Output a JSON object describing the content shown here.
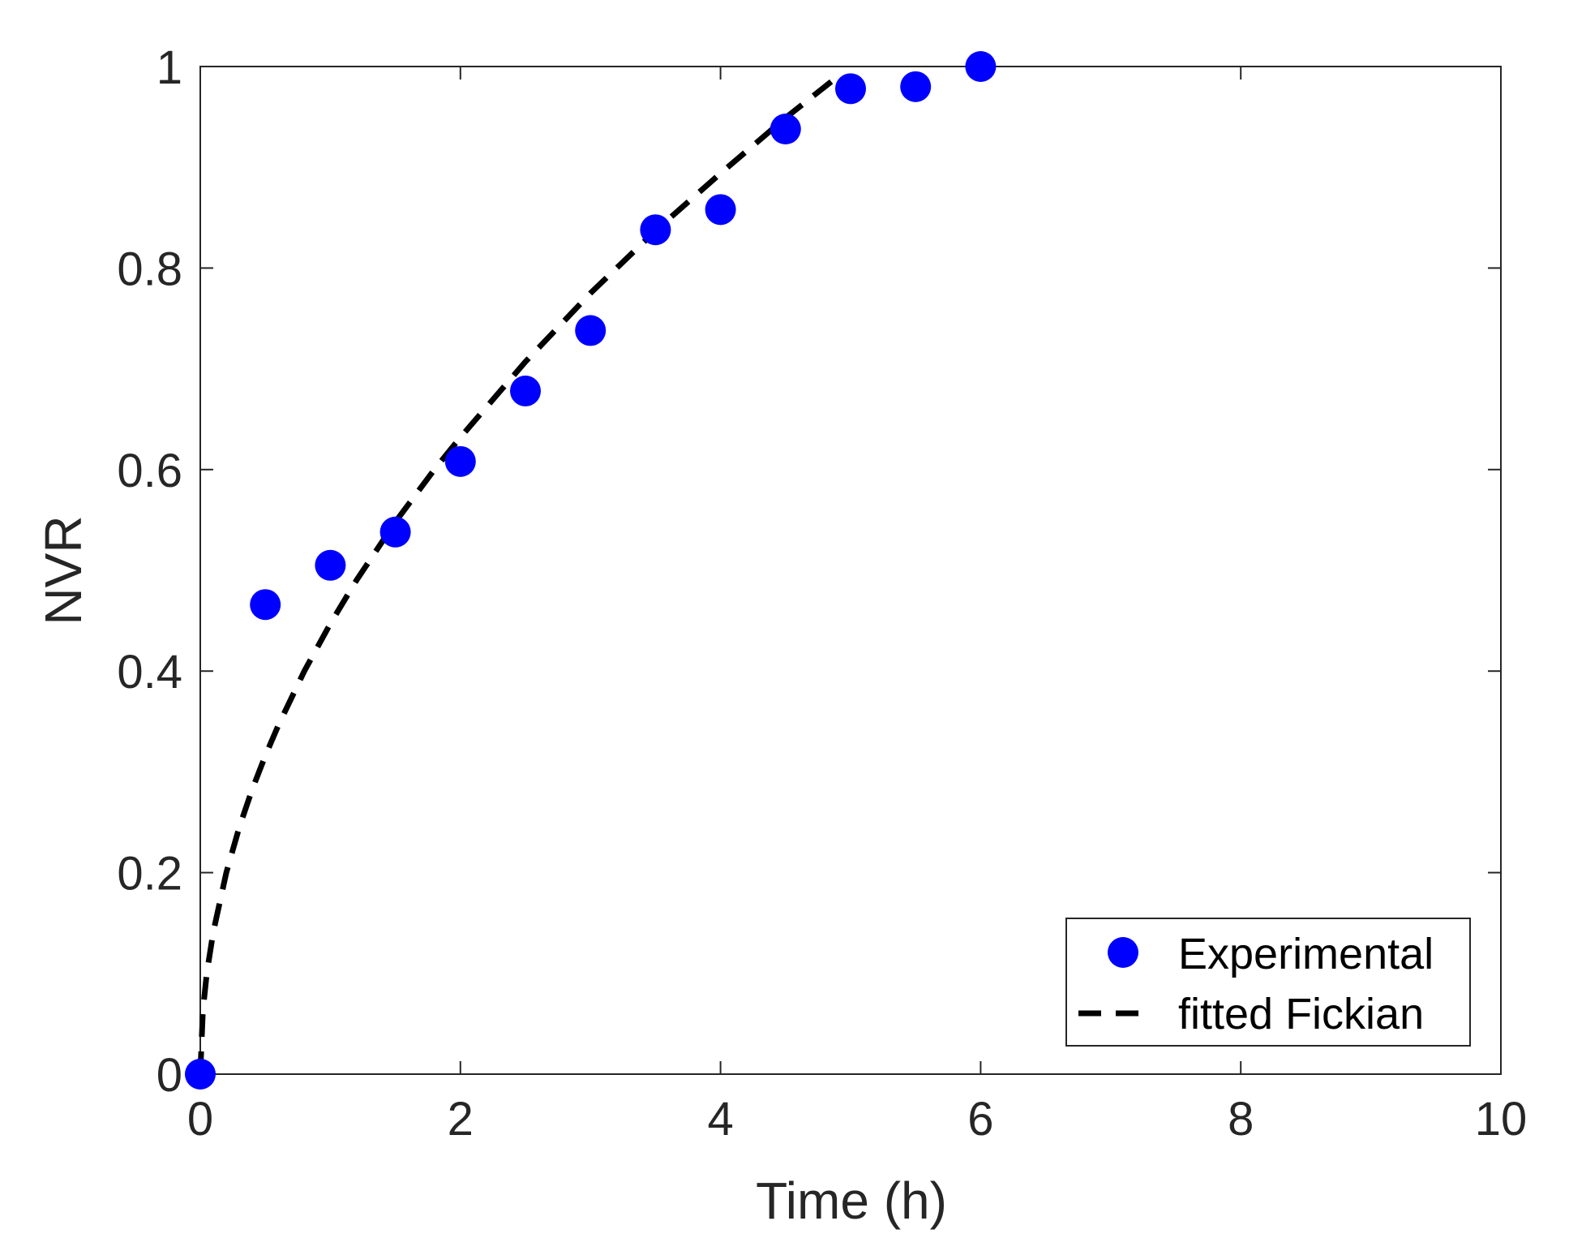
{
  "chart_data": {
    "type": "scatter",
    "title": "",
    "xlabel": "Time (h)",
    "ylabel": "NVR",
    "xlim": [
      0,
      10
    ],
    "ylim": [
      0,
      1
    ],
    "xticks": [
      0,
      2,
      4,
      6,
      8,
      10
    ],
    "yticks": [
      0,
      0.2,
      0.4,
      0.6,
      0.8,
      1
    ],
    "xtick_labels": [
      "0",
      "2",
      "4",
      "6",
      "8",
      "10"
    ],
    "ytick_labels": [
      "0",
      "0.2",
      "0.4",
      "0.6",
      "0.8",
      "1"
    ],
    "grid": false,
    "legend_position": "bottom-right",
    "series": [
      {
        "name": "Experimental",
        "kind": "markers",
        "color": "#0000ff",
        "x": [
          0,
          0.5,
          1,
          1.5,
          2,
          2.5,
          3,
          3.5,
          4,
          4.5,
          5,
          5.5,
          6
        ],
        "y": [
          0,
          0.466,
          0.505,
          0.538,
          0.608,
          0.678,
          0.738,
          0.838,
          0.858,
          0.938,
          0.978,
          0.98,
          1.0
        ]
      },
      {
        "name": "fitted Fickian",
        "kind": "dashed-line",
        "color": "#000000",
        "x": [
          0,
          0.02,
          0.05,
          0.1,
          0.2,
          0.3,
          0.4,
          0.5,
          0.6,
          0.8,
          1.0,
          1.2,
          1.5,
          1.8,
          2.0,
          2.5,
          3.0,
          3.5,
          4.0,
          4.5,
          4.9
        ],
        "y": [
          0,
          0.063,
          0.1,
          0.141,
          0.2,
          0.245,
          0.283,
          0.316,
          0.346,
          0.4,
          0.447,
          0.49,
          0.548,
          0.6,
          0.632,
          0.707,
          0.775,
          0.837,
          0.894,
          0.949,
          0.99
        ]
      }
    ]
  }
}
